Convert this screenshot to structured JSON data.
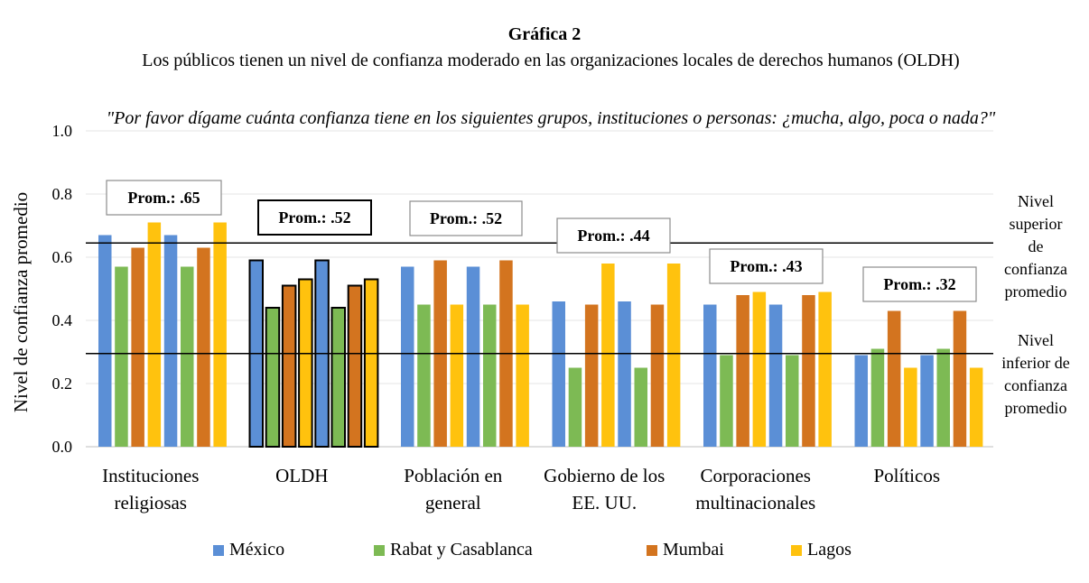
{
  "chart_data": {
    "type": "bar",
    "title": "Gráfica 2",
    "subtitle": "Los públicos tienen un nivel de confianza moderado en las organizaciones locales de derechos humanos (OLDH)",
    "question": "\"Por favor dígame cuánta confianza tiene en los siguientes grupos, instituciones o personas: ¿mucha, algo, poca o nada?\"",
    "ylabel": "Nivel de confianza promedio",
    "xlabel": "",
    "ylim": [
      0,
      1.0
    ],
    "yticks": [
      "0.0",
      "0.2",
      "0.4",
      "0.6",
      "0.8",
      "1.0"
    ],
    "categories": [
      [
        "Instituciones",
        "religiosas"
      ],
      [
        "OLDH"
      ],
      [
        "Población en",
        "general"
      ],
      [
        "Gobierno de los",
        "EE. UU."
      ],
      [
        "Corporaciones",
        "multinacionales"
      ],
      [
        "Políticos"
      ]
    ],
    "series": [
      {
        "name": "México",
        "color": "#5b8fd6",
        "values": [
          0.67,
          0.59,
          0.57,
          0.46,
          0.45,
          0.29
        ]
      },
      {
        "name": "Rabat y Casablanca",
        "color": "#7dba54",
        "values": [
          0.57,
          0.44,
          0.45,
          0.25,
          0.29,
          0.31
        ]
      },
      {
        "name": "Mumbai",
        "color": "#d3741f",
        "values": [
          0.63,
          0.51,
          0.59,
          0.45,
          0.48,
          0.43
        ]
      },
      {
        "name": "Lagos",
        "color": "#ffc20e",
        "values": [
          0.71,
          0.53,
          0.45,
          0.58,
          0.49,
          0.25
        ]
      }
    ],
    "averages": [
      "Prom.: .65",
      "Prom.: .52",
      "Prom.: .52",
      "Prom.: .44",
      "Prom.: .43",
      "Prom.: .32"
    ],
    "reference_lines": [
      {
        "value": 0.645,
        "label": [
          "Nivel",
          "superior",
          "de",
          "confianza",
          "promedio"
        ]
      },
      {
        "value": 0.295,
        "label": [
          "Nivel",
          "inferior de",
          "confianza",
          "promedio"
        ]
      }
    ],
    "highlight_category": "OLDH",
    "legend_position": "bottom",
    "grid": true
  }
}
